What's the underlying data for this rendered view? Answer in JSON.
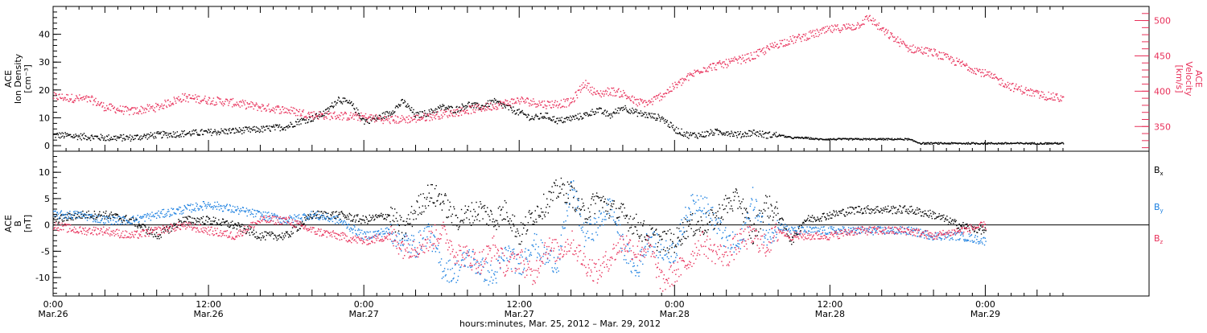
{
  "chart_data": [
    {
      "type": "scatter",
      "panel": "top",
      "left_label": [
        "ACE",
        "Ion Density",
        "[cm⁻³]"
      ],
      "right_label": [
        "ACE",
        "Velocity",
        "[km/s]"
      ],
      "colors": {
        "density": "#000000",
        "velocity": "#e8305a"
      },
      "ylim": [
        -2,
        50
      ],
      "y_ticks": [
        0,
        10,
        20,
        30,
        40
      ],
      "y2lim": [
        315,
        520
      ],
      "y2_ticks": [
        350,
        400,
        450,
        500
      ],
      "x_range_hours": [
        0,
        78
      ],
      "series": [
        {
          "name": "density",
          "axis": "left",
          "x": [
            0,
            2,
            4,
            6,
            8,
            10,
            12,
            14,
            16,
            18,
            19,
            20,
            21,
            22,
            23,
            24,
            25,
            26,
            27,
            28,
            29,
            30,
            31,
            32,
            33,
            34,
            35,
            36,
            37,
            38,
            39,
            40,
            41,
            42,
            43,
            44,
            45,
            46,
            47,
            48,
            49,
            50,
            51,
            52,
            53,
            54,
            55,
            56,
            57,
            58,
            59,
            60,
            61,
            62,
            63,
            64,
            65,
            66,
            67,
            68,
            69,
            70,
            71,
            72,
            73,
            74,
            75,
            76,
            77,
            78
          ],
          "y": [
            4,
            3.5,
            3,
            3,
            4,
            4.5,
            5,
            5.5,
            6,
            7,
            9,
            10,
            12,
            17,
            15,
            9,
            10,
            12,
            16,
            11,
            12,
            14,
            13,
            15,
            14,
            16,
            14,
            12,
            10,
            11,
            9,
            10,
            11,
            13,
            11,
            14,
            12,
            11,
            10,
            6,
            4,
            4,
            5,
            5,
            4,
            5,
            4,
            4,
            3,
            3,
            2.5,
            2.5,
            2.5,
            2.5,
            2.5,
            2.5,
            2.5,
            2.5,
            1,
            1,
            1,
            1,
            1,
            1,
            1,
            1,
            1,
            1,
            1,
            1
          ]
        },
        {
          "name": "velocity",
          "axis": "right",
          "x": [
            0,
            2,
            3,
            4,
            6,
            8,
            10,
            12,
            14,
            16,
            18,
            20,
            22,
            24,
            26,
            28,
            30,
            32,
            34,
            36,
            38,
            39,
            40,
            41,
            42,
            43,
            44,
            45,
            46,
            47,
            48,
            50,
            52,
            54,
            56,
            58,
            60,
            62,
            63,
            64,
            66,
            68,
            70,
            72,
            74,
            76,
            78
          ],
          "y": [
            393,
            390,
            388,
            378,
            372,
            378,
            392,
            388,
            384,
            378,
            374,
            367,
            366,
            364,
            360,
            362,
            368,
            374,
            380,
            388,
            382,
            383,
            385,
            412,
            396,
            401,
            397,
            385,
            384,
            395,
            408,
            432,
            440,
            450,
            468,
            478,
            488,
            493,
            505,
            487,
            462,
            455,
            440,
            425,
            407,
            396,
            390
          ]
        }
      ]
    },
    {
      "type": "scatter",
      "panel": "bottom",
      "left_label": [
        "ACE",
        "B",
        "[nT]"
      ],
      "ylim": [
        -13.5,
        14
      ],
      "y_ticks": [
        -10,
        -5,
        0,
        5,
        10
      ],
      "zero_line": true,
      "x_range_hours": [
        0,
        78
      ],
      "x_ticks": [
        {
          "hour": 0,
          "line1": "0:00",
          "line2": "Mar.26"
        },
        {
          "hour": 12,
          "line1": "12:00",
          "line2": "Mar.26"
        },
        {
          "hour": 24,
          "line1": "0:00",
          "line2": "Mar.27"
        },
        {
          "hour": 36,
          "line1": "12:00",
          "line2": "Mar.27"
        },
        {
          "hour": 48,
          "line1": "0:00",
          "line2": "Mar.28"
        },
        {
          "hour": 60,
          "line1": "12:00",
          "line2": "Mar.28"
        },
        {
          "hour": 72,
          "line1": "0:00",
          "line2": "Mar.29"
        }
      ],
      "xlabel": "hours:minutes, Mar. 25, 2012 – Mar. 29, 2012",
      "legend": [
        {
          "base": "B",
          "sub": "x",
          "color": "#000000"
        },
        {
          "base": "B",
          "sub": "y",
          "color": "#1a7fe0"
        },
        {
          "base": "B",
          "sub": "z",
          "color": "#e8305a"
        }
      ],
      "series": [
        {
          "name": "Bx",
          "x": [
            0,
            2,
            4,
            6,
            8,
            10,
            12,
            14,
            16,
            18,
            20,
            22,
            24,
            26,
            27,
            28,
            29,
            30,
            31,
            32,
            33,
            34,
            35,
            36,
            37,
            38,
            39,
            40,
            41,
            42,
            43,
            44,
            45,
            46,
            47,
            48,
            49,
            50,
            51,
            52,
            53,
            54,
            55,
            56,
            57,
            58,
            60,
            62,
            64,
            66,
            68,
            70,
            72
          ],
          "y": [
            1,
            2,
            2,
            1,
            -2,
            1,
            1,
            0,
            -2,
            -2,
            2,
            2,
            1,
            2,
            -1,
            3,
            6,
            5,
            1,
            2,
            3,
            1,
            3,
            -2,
            2,
            4,
            7,
            6,
            2,
            5,
            3,
            2,
            0,
            -2,
            -3,
            -3,
            0,
            0,
            1,
            4,
            5,
            -2,
            4,
            2,
            -3,
            1,
            2,
            3,
            3,
            3,
            2,
            0,
            -1
          ]
        },
        {
          "name": "By",
          "x": [
            0,
            2,
            4,
            6,
            8,
            10,
            12,
            14,
            16,
            18,
            20,
            22,
            24,
            26,
            27,
            28,
            29,
            30,
            31,
            32,
            33,
            34,
            35,
            36,
            37,
            38,
            39,
            40,
            41,
            42,
            43,
            44,
            45,
            46,
            47,
            48,
            49,
            50,
            51,
            52,
            53,
            54,
            55,
            56,
            57,
            58,
            60,
            62,
            64,
            66,
            68,
            70,
            72
          ],
          "y": [
            2,
            2,
            1,
            1,
            2,
            3,
            4,
            3,
            2,
            1,
            2,
            1,
            -2,
            -1,
            -3,
            -4,
            -1,
            -8,
            -9,
            -6,
            -8,
            -10,
            -5,
            -8,
            -3,
            -6,
            -7,
            8,
            -2,
            0,
            4,
            -4,
            -9,
            -2,
            -5,
            -5,
            3,
            5,
            1,
            -3,
            -4,
            5,
            -2,
            0,
            -1,
            -1,
            -1,
            -1,
            -1,
            -1,
            -2,
            -2,
            -3
          ]
        },
        {
          "name": "Bz",
          "x": [
            0,
            2,
            4,
            6,
            8,
            10,
            12,
            14,
            16,
            18,
            20,
            22,
            24,
            26,
            27,
            28,
            29,
            30,
            31,
            32,
            33,
            34,
            35,
            36,
            37,
            38,
            39,
            40,
            41,
            42,
            43,
            44,
            45,
            46,
            47,
            48,
            49,
            50,
            51,
            52,
            53,
            54,
            55,
            56,
            57,
            58,
            60,
            62,
            64,
            66,
            68,
            70,
            72
          ],
          "y": [
            0,
            -1,
            -1,
            -2,
            -1,
            0,
            -1,
            -2,
            1,
            1,
            -1,
            -2,
            -3,
            -2,
            -4,
            -4,
            -3,
            -1,
            -5,
            -6,
            -7,
            -4,
            -8,
            -6,
            -10,
            -4,
            -5,
            -3,
            -7,
            -9,
            -6,
            -3,
            -5,
            -4,
            -11,
            -9,
            -7,
            -3,
            -5,
            -6,
            -3,
            -2,
            -4,
            -1,
            -2,
            -2,
            -2,
            -1,
            -1,
            -1,
            -2,
            -1,
            0
          ]
        }
      ]
    }
  ]
}
